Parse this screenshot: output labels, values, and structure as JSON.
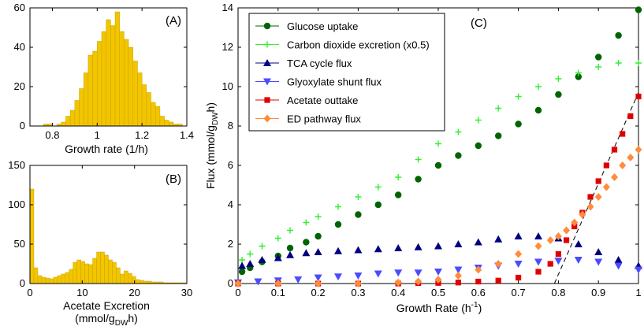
{
  "chart_data": [
    {
      "id": "A",
      "type": "bar",
      "panel_label": "(A)",
      "xlabel": "Growth rate (1/h)",
      "ylabel": "",
      "xlim": [
        0.7,
        1.4
      ],
      "ylim": [
        0,
        60
      ],
      "xticks": [
        0.8,
        1,
        1.2,
        1.4
      ],
      "xtick_labels": [
        "0.8",
        "1",
        "1.2",
        "1.4"
      ],
      "yticks": [
        0,
        20,
        40,
        60
      ],
      "ytick_labels": [
        "0",
        "20",
        "40",
        "60"
      ],
      "bar_color": "#f2c500",
      "bins": {
        "start": 0.76,
        "width": 0.02
      },
      "values": [
        1,
        1,
        0,
        1,
        2,
        5,
        8,
        13,
        19,
        27,
        36,
        38,
        43,
        48,
        54,
        51,
        58,
        48,
        44,
        40,
        33,
        27,
        21,
        17,
        12,
        10,
        5,
        3,
        2,
        1,
        1
      ]
    },
    {
      "id": "B",
      "type": "bar",
      "panel_label": "(B)",
      "xlabel": "Acetate Excretion",
      "xlabel_line2": {
        "main": "(mmol/g",
        "sub": "DW",
        "tail": "h)"
      },
      "ylabel": "",
      "xlim": [
        0,
        30
      ],
      "ylim": [
        0,
        150
      ],
      "xticks": [
        0,
        10,
        20,
        30
      ],
      "xtick_labels": [
        "0",
        "10",
        "20",
        "30"
      ],
      "yticks": [
        0,
        50,
        100,
        150
      ],
      "ytick_labels": [
        "0",
        "50",
        "100",
        "150"
      ],
      "bar_color": "#f2c500",
      "bins": {
        "start": 0,
        "width": 0.75
      },
      "values": [
        120,
        20,
        10,
        8,
        7,
        6,
        8,
        10,
        12,
        14,
        18,
        27,
        30,
        28,
        25,
        24,
        32,
        40,
        40,
        36,
        30,
        27,
        20,
        12,
        16,
        13,
        9,
        5,
        4,
        3,
        3,
        2,
        2,
        2,
        1,
        1,
        1,
        1,
        1,
        1
      ]
    },
    {
      "id": "C",
      "type": "scatter",
      "panel_label": "(C)",
      "xlabel": {
        "main": "Growth Rate (h",
        "sup": "-1",
        "tail": ")"
      },
      "ylabel": {
        "main": "Flux (mmol/g",
        "sub": "DW",
        "tail": "h)"
      },
      "xlim": [
        0,
        1
      ],
      "ylim": [
        0,
        14
      ],
      "xticks": [
        0,
        0.1,
        0.2,
        0.3,
        0.4,
        0.5,
        0.6,
        0.7,
        0.8,
        0.9,
        1
      ],
      "xtick_labels": [
        "0",
        "0.1",
        "0.2",
        "0.3",
        "0.4",
        "0.5",
        "0.6",
        "0.7",
        "0.8",
        "0.9",
        "1"
      ],
      "yticks": [
        0,
        2,
        4,
        6,
        8,
        10,
        12,
        14
      ],
      "ytick_labels": [
        "0",
        "2",
        "4",
        "6",
        "8",
        "10",
        "12",
        "14"
      ],
      "legend_position": "top-left",
      "series": [
        {
          "name": "Glucose uptake",
          "color": "#006400",
          "marker": "circle",
          "x": [
            0.01,
            0.03,
            0.06,
            0.1,
            0.13,
            0.17,
            0.2,
            0.25,
            0.3,
            0.35,
            0.4,
            0.45,
            0.5,
            0.55,
            0.6,
            0.65,
            0.7,
            0.75,
            0.8,
            0.85,
            0.9,
            0.95,
            1.0
          ],
          "y": [
            0.6,
            0.8,
            1.1,
            1.4,
            1.8,
            2.1,
            2.4,
            3.0,
            3.5,
            4.0,
            4.5,
            5.3,
            6.0,
            6.5,
            7.0,
            7.5,
            8.1,
            8.8,
            9.6,
            10.5,
            11.5,
            12.6,
            13.9
          ]
        },
        {
          "name": "Carbon dioxide excretion (x0.5)",
          "color": "#33ee33",
          "marker": "plus",
          "x": [
            0.01,
            0.03,
            0.06,
            0.1,
            0.13,
            0.17,
            0.2,
            0.25,
            0.3,
            0.35,
            0.4,
            0.45,
            0.5,
            0.55,
            0.6,
            0.65,
            0.7,
            0.75,
            0.8,
            0.85,
            0.9,
            0.95,
            1.0
          ],
          "y": [
            1.2,
            1.5,
            1.9,
            2.3,
            2.7,
            3.1,
            3.4,
            3.9,
            4.4,
            4.9,
            5.4,
            6.3,
            7.1,
            7.7,
            8.3,
            8.9,
            9.5,
            10.0,
            10.4,
            10.7,
            11.0,
            11.2,
            11.2
          ]
        },
        {
          "name": "TCA cycle flux",
          "color": "#000080",
          "marker": "triangle-up",
          "x": [
            0.01,
            0.03,
            0.06,
            0.1,
            0.13,
            0.17,
            0.2,
            0.25,
            0.3,
            0.35,
            0.4,
            0.45,
            0.5,
            0.55,
            0.6,
            0.65,
            0.7,
            0.75,
            0.8,
            0.85,
            0.9,
            0.95,
            1.0
          ],
          "y": [
            0.9,
            1.0,
            1.2,
            1.3,
            1.45,
            1.55,
            1.6,
            1.65,
            1.7,
            1.75,
            1.8,
            1.85,
            1.9,
            2.0,
            2.1,
            2.25,
            2.4,
            2.4,
            2.3,
            2.0,
            1.6,
            1.2,
            0.9
          ]
        },
        {
          "name": "Glyoxylate shunt flux",
          "color": "#4b4bff",
          "marker": "triangle-down",
          "x": [
            0.0,
            0.05,
            0.1,
            0.15,
            0.2,
            0.25,
            0.3,
            0.35,
            0.4,
            0.45,
            0.5,
            0.55,
            0.6,
            0.65,
            0.7,
            0.75,
            0.8,
            0.85,
            0.9,
            0.95,
            1.0
          ],
          "y": [
            0.05,
            0.1,
            0.15,
            0.2,
            0.3,
            0.35,
            0.4,
            0.5,
            0.55,
            0.55,
            0.6,
            0.7,
            0.8,
            0.9,
            1.0,
            1.1,
            1.15,
            1.2,
            1.1,
            0.9,
            0.7
          ]
        },
        {
          "name": "Acetate outtake",
          "color": "#e00000",
          "marker": "square",
          "x": [
            0.0,
            0.1,
            0.2,
            0.3,
            0.4,
            0.45,
            0.5,
            0.55,
            0.6,
            0.65,
            0.7,
            0.75,
            0.78,
            0.8,
            0.82,
            0.84,
            0.86,
            0.88,
            0.9,
            0.92,
            0.94,
            0.96,
            0.98,
            1.0
          ],
          "y": [
            0.0,
            0.0,
            0.0,
            0.0,
            0.0,
            0.02,
            0.03,
            0.05,
            0.1,
            0.15,
            0.3,
            0.6,
            1.0,
            1.5,
            2.2,
            2.9,
            3.6,
            4.4,
            5.2,
            6.0,
            6.8,
            7.6,
            8.5,
            9.5
          ]
        },
        {
          "name": "ED pathway flux",
          "color": "#ff8c3c",
          "marker": "diamond",
          "x": [
            0.0,
            0.1,
            0.2,
            0.3,
            0.4,
            0.45,
            0.5,
            0.55,
            0.6,
            0.65,
            0.7,
            0.75,
            0.78,
            0.8,
            0.82,
            0.84,
            0.86,
            0.88,
            0.9,
            0.92,
            0.94,
            0.96,
            0.98,
            1.0
          ],
          "y": [
            0.0,
            0.0,
            0.0,
            0.0,
            0.05,
            0.1,
            0.2,
            0.4,
            0.7,
            1.0,
            1.5,
            1.9,
            2.2,
            2.4,
            2.7,
            3.1,
            3.5,
            3.9,
            4.4,
            4.9,
            5.4,
            6.0,
            6.4,
            6.8
          ]
        }
      ],
      "dashed_guide": {
        "x": [
          0.79,
          1.0
        ],
        "y": [
          0.0,
          9.7
        ]
      }
    }
  ]
}
